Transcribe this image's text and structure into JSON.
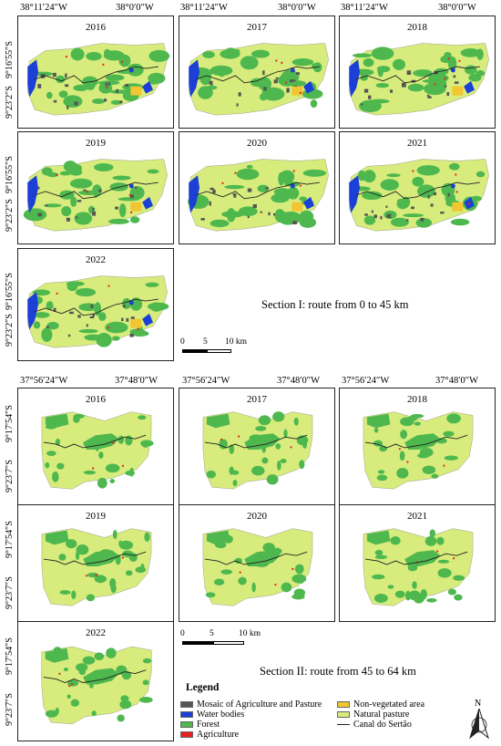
{
  "colors": {
    "mosaic": "#555555",
    "water": "#1c3fd6",
    "forest": "#4eb84e",
    "agriculture": "#e82020",
    "nonveg": "#f2c531",
    "pasture": "#d7ec7c",
    "canal": "#222222"
  },
  "section1": {
    "label": "Section I: route from 0 to 45 km",
    "lon_left": "38°11′24″W",
    "lon_right": "38°0′0″W",
    "lat_top": "9°16′55″S",
    "lat_bottom": "9°23′2″S",
    "years": [
      "2016",
      "2017",
      "2018",
      "2019",
      "2020",
      "2021",
      "2022"
    ],
    "scale": {
      "zero": "0",
      "mid": "5",
      "end": "10 km"
    }
  },
  "section2": {
    "label": "Section II: route from 45 to 64 km",
    "lon_left": "37°56′24″W",
    "lon_right": "37°48′0″W",
    "lat_top": "9°17′54″S",
    "lat_bottom": "9°23′7″S",
    "years": [
      "2016",
      "2017",
      "2018",
      "2019",
      "2020",
      "2021",
      "2022"
    ],
    "scale": {
      "zero": "0",
      "mid": "5",
      "end": "10 km"
    }
  },
  "legend": {
    "title": "Legend",
    "items": [
      {
        "key": "mosaic",
        "label": "Mosaic of Agriculture and Pasture",
        "icon": "swatch"
      },
      {
        "key": "water",
        "label": "Water bodies",
        "icon": "swatch"
      },
      {
        "key": "forest",
        "label": "Forest",
        "icon": "swatch"
      },
      {
        "key": "agriculture",
        "label": "Agriculture",
        "icon": "swatch"
      },
      {
        "key": "nonveg",
        "label": "Non-vegetated area",
        "icon": "swatch"
      },
      {
        "key": "pasture",
        "label": "Natural pasture",
        "icon": "swatch"
      },
      {
        "key": "canal",
        "label": "Canal do Sertão",
        "icon": "line"
      }
    ]
  },
  "north": {
    "label": "N",
    "icon": "north-arrow-icon"
  }
}
